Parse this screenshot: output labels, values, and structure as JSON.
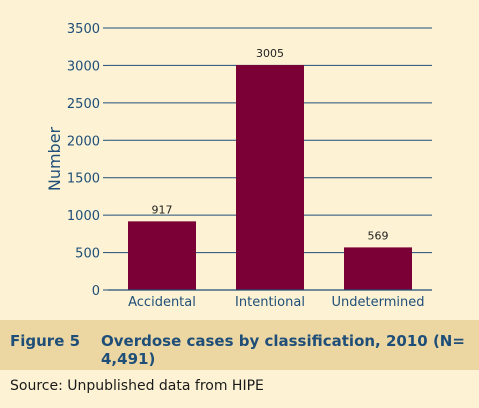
{
  "caption": {
    "label": "Figure 5",
    "title": "Overdose cases by classification, 2010 (N= 4,491)"
  },
  "source": "Source: Unpublished data from HIPE",
  "colors": {
    "bar": "#7a0035",
    "axis": "#1f4e78",
    "caption_bg": "#ecd7a2",
    "page_bg": "#fdf3d4"
  },
  "chart_data": {
    "type": "bar",
    "categories": [
      "Accidental",
      "Intentional",
      "Undetermined"
    ],
    "values": [
      917,
      3005,
      569
    ],
    "data_labels": [
      "917",
      "3005",
      "569"
    ],
    "ylabel": "Number",
    "xlabel": "",
    "ylim": [
      0,
      3500
    ],
    "yticks": [
      0,
      500,
      1000,
      1500,
      2000,
      2500,
      3000,
      3500
    ],
    "grid": true,
    "legend": "none"
  }
}
